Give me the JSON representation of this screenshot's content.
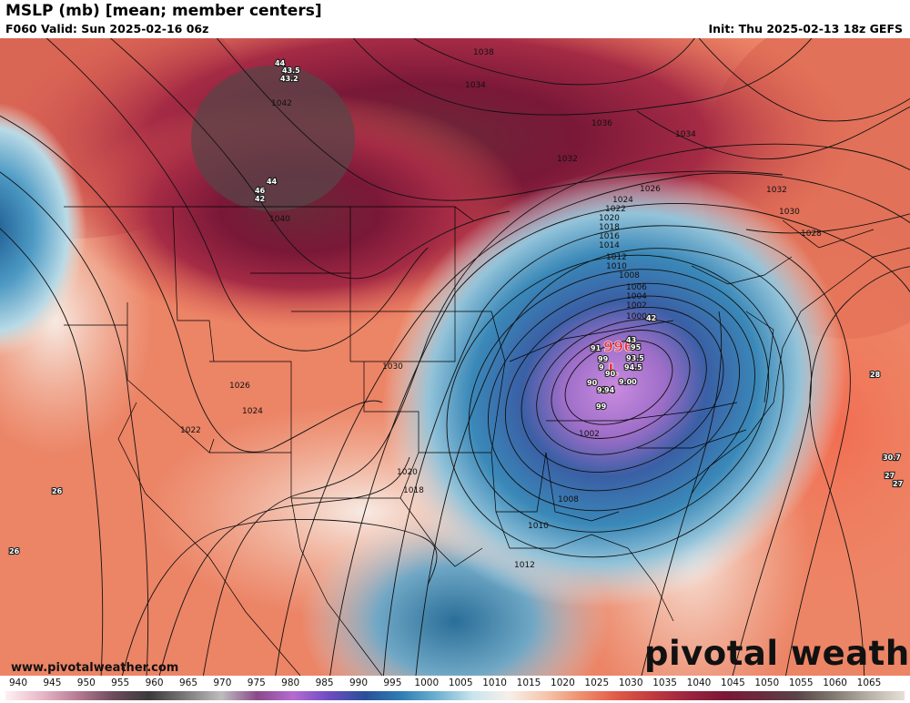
{
  "header": {
    "title": "MSLP (mb) [mean; member centers]",
    "valid": "F060 Valid: Sun 2025-02-16 06z",
    "init": "Init: Thu 2025-02-13 18z GEFS"
  },
  "footer": {
    "site": "www.pivotalweather.com",
    "logo": "pivotal weather"
  },
  "scale": {
    "ticks": [
      "940",
      "945",
      "950",
      "955",
      "960",
      "965",
      "970",
      "975",
      "980",
      "985",
      "990",
      "995",
      "1000",
      "1005",
      "1010",
      "1015",
      "1020",
      "1025",
      "1030",
      "1035",
      "1040",
      "1045",
      "1050",
      "1055",
      "1060",
      "1065"
    ]
  },
  "contour_labels": [
    "1038",
    "1034",
    "1042",
    "1040",
    "1036",
    "1032",
    "1034",
    "1032",
    "1026",
    "1024",
    "1030",
    "1028",
    "1022",
    "1020",
    "1018",
    "1016",
    "1014",
    "1012",
    "1010",
    "1008",
    "1006",
    "1004",
    "1002",
    "1000",
    "1030",
    "1026",
    "1024",
    "1022",
    "1020",
    "1018",
    "1002",
    "1008",
    "1010",
    "1012",
    "996"
  ],
  "member_labels": [
    "44",
    "43.5",
    "43.2",
    "44",
    "46",
    "42",
    "42",
    "43",
    "95",
    "91",
    "99",
    "90",
    "93.5",
    "94.5",
    "90",
    "9",
    "92",
    "94",
    "9.00",
    "99",
    "28",
    "30.7",
    "27",
    "27",
    "26",
    "26",
    "L"
  ],
  "colors": {
    "high": "#7a1030",
    "low": "#c070c0"
  }
}
